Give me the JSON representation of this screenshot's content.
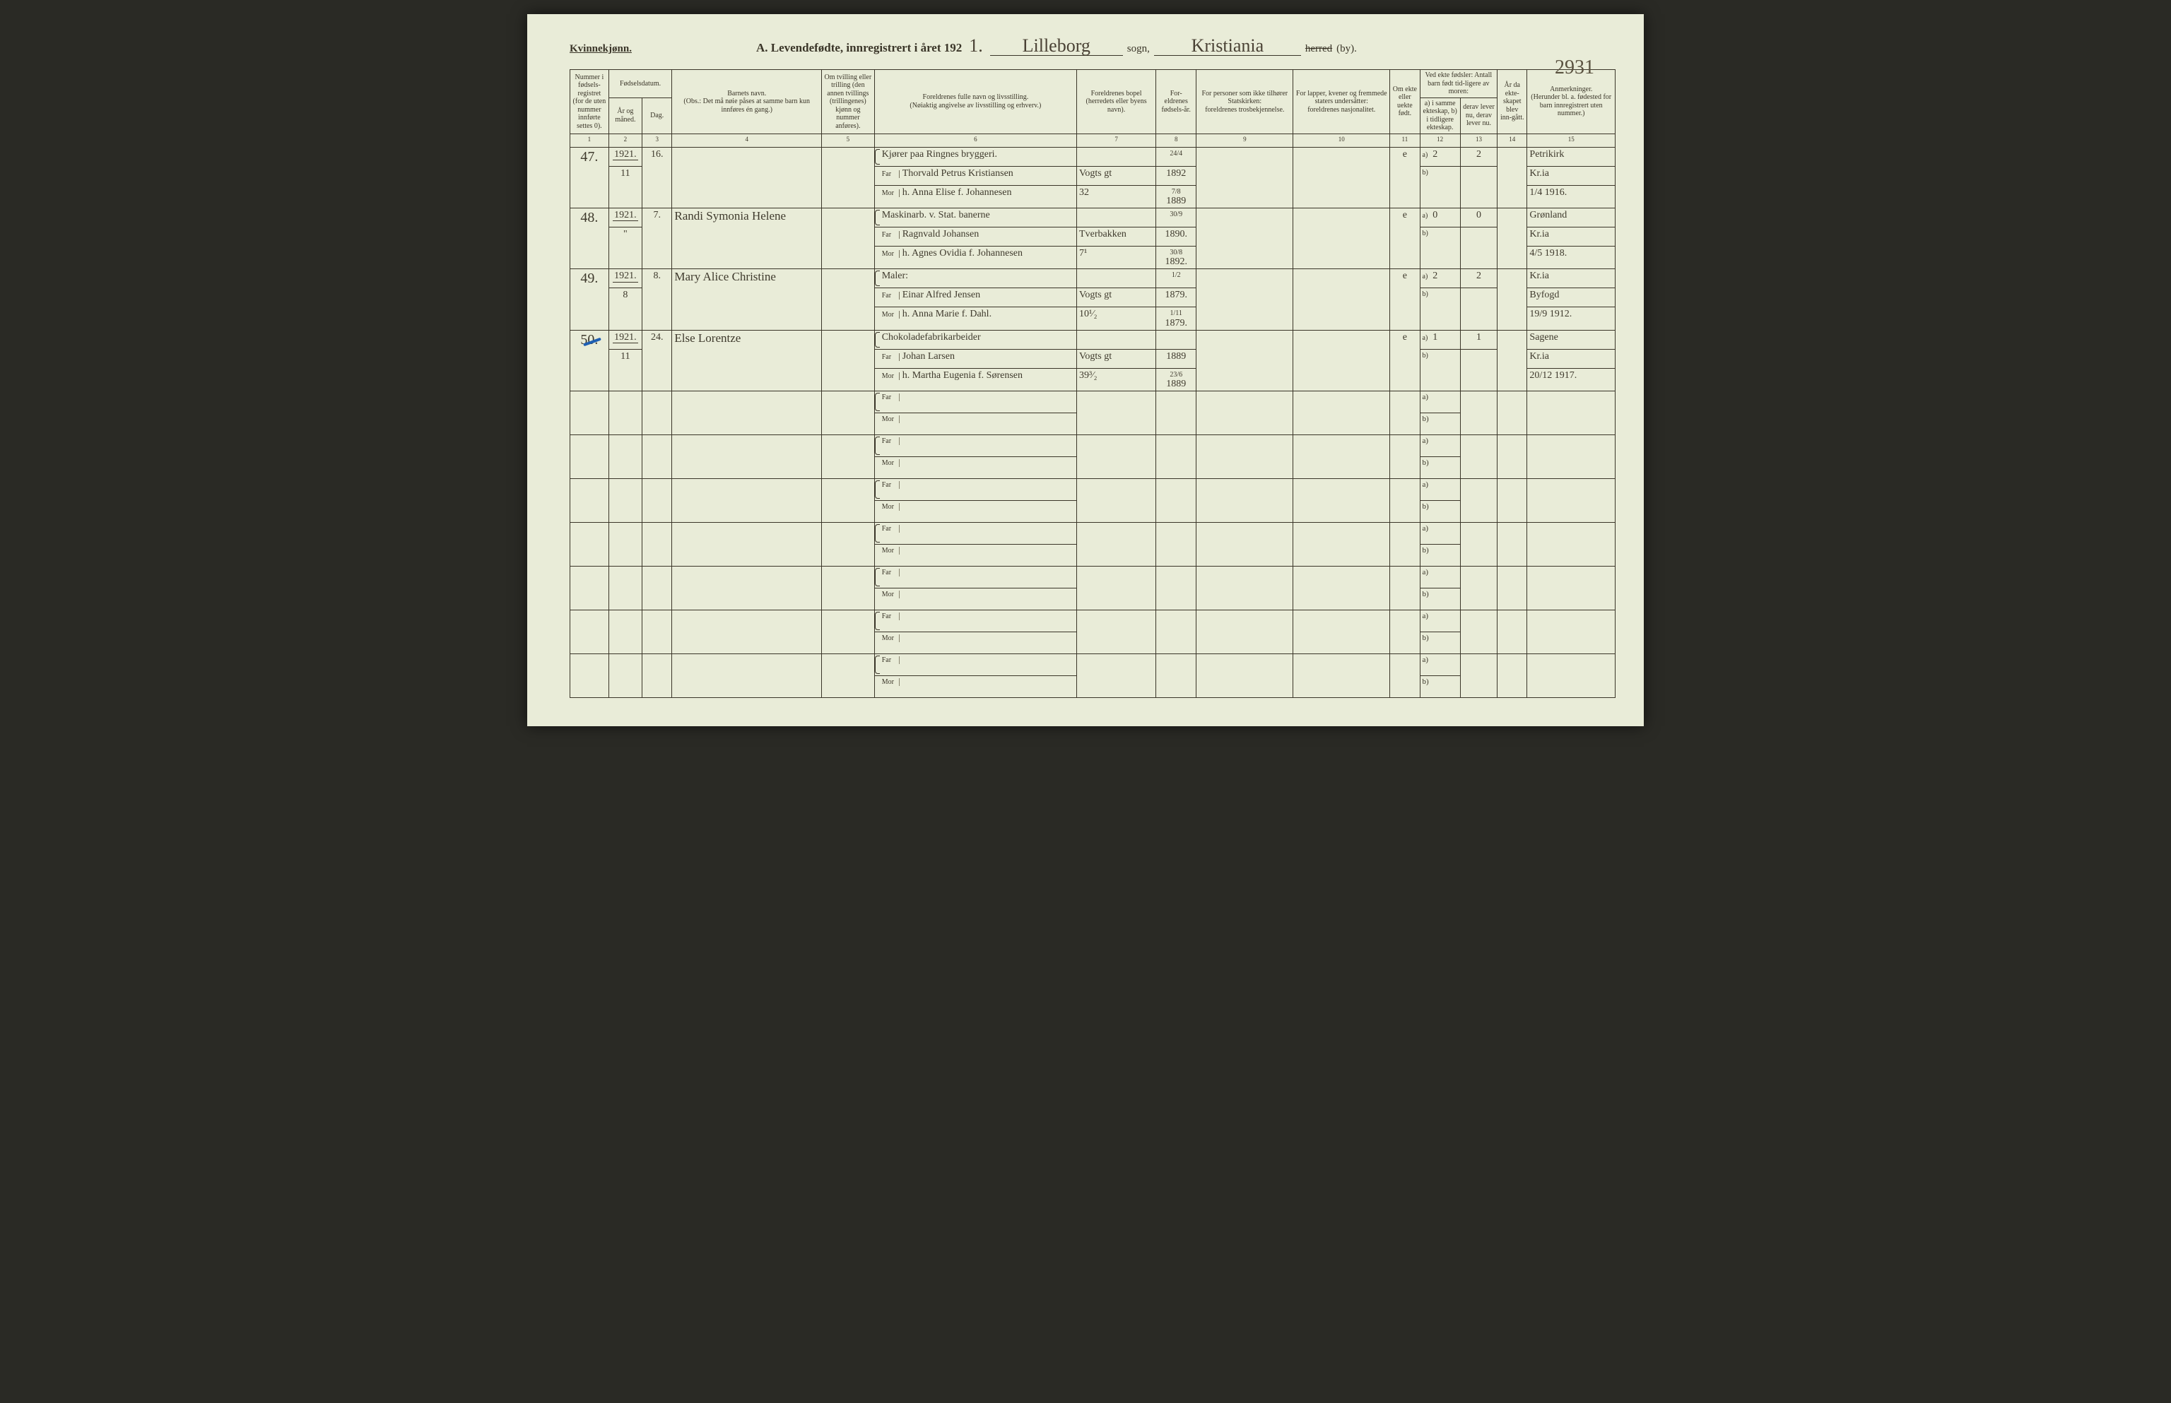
{
  "header": {
    "gender_label": "Kvinnekjønn.",
    "title_prefix": "A.  Levendefødte, innregistrert i året 192",
    "year_last_digit": "1.",
    "parish": "Lilleborg",
    "sogn_label": "sogn,",
    "district": "Kristiania",
    "herred_label": "herred",
    "by_label": "(by).",
    "page_number": "2931"
  },
  "columns": {
    "c1": "Nummer i fødsels-registret (for de uten nummer innførte settes 0).",
    "c2g": "Fødselsdatum.",
    "c2": "År og måned.",
    "c3": "Dag.",
    "c4": "Barnets navn.",
    "c4note": "(Obs.: Det må nøie påses at samme barn kun innføres én gang.)",
    "c5": "Om tvilling eller trilling (den annen tvillings (trillingenes) kjønn og nummer anføres).",
    "c6": "Foreldrenes fulle navn og livsstilling.",
    "c6note": "(Nøiaktig angivelse av livsstilling og erhverv.)",
    "c7": "Foreldrenes bopel",
    "c7note": "(herredets eller byens navn).",
    "c8": "For-eldrenes fødsels-år.",
    "c9": "For personer som ikke tilhører Statskirken:",
    "c9note": "foreldrenes trosbekjennelse.",
    "c10": "For lapper, kvener og fremmede staters undersåtter:",
    "c10note": "foreldrenes nasjonalitet.",
    "c11": "Om ekte eller uekte født.",
    "c12g": "Ved ekte fødsler: Antall barn født tid-ligere av moren:",
    "c12": "a) i samme ekteskap,  b) i tidligere ekteskap.",
    "c13": "derav lever nu, derav lever nu.",
    "c14": "År da ekte-skapet blev inn-gått.",
    "c15": "Anmerkninger.",
    "c15note": "(Herunder bl. a. fødested for barn innregistrert uten nummer.)"
  },
  "colnums": [
    "1",
    "2",
    "3",
    "4",
    "5",
    "6",
    "7",
    "8",
    "9",
    "10",
    "11",
    "12",
    "13",
    "14",
    "15"
  ],
  "prelabels": {
    "far": "Far",
    "mor": "Mor",
    "a": "a)",
    "b": "b)"
  },
  "entries": [
    {
      "num": "47.",
      "year": "1921.",
      "month": "11",
      "day": "16.",
      "child": "",
      "occ": "Kjører paa Ringnes bryggeri.",
      "far": "Thorvald Petrus Kristiansen",
      "mor": "h. Anna Elise f. Johannesen",
      "addr_far": "Vogts gt",
      "addr_mor": "32",
      "year_far_top": "24/4",
      "year_far": "1892",
      "year_mor_top": "7/8",
      "year_mor": "1889",
      "ekte": "e",
      "a12": "2",
      "a13": "2",
      "rem1": "Petrikirk",
      "rem2": "Kr.ia",
      "rem3": "1/4 1916."
    },
    {
      "num": "48.",
      "year": "1921.",
      "month": "\"",
      "day": "7.",
      "child": "Randi Symonia Helene",
      "occ": "Maskinarb. v. Stat. banerne",
      "far": "Ragnvald Johansen",
      "mor": "h. Agnes Ovidia f. Johannesen",
      "addr_far": "Tverbakken",
      "addr_mor": "7¹",
      "year_far_top": "30/9",
      "year_far": "1890.",
      "year_mor_top": "30/8",
      "year_mor": "1892.",
      "ekte": "e",
      "a12": "0",
      "a13": "0",
      "rem1": "Grønland",
      "rem2": "Kr.ia",
      "rem3": "4/5 1918."
    },
    {
      "num": "49.",
      "year": "1921.",
      "month": "8",
      "day": "8.",
      "child": "Mary Alice Christine",
      "occ": "Maler:",
      "far": "Einar Alfred Jensen",
      "mor": "h. Anna Marie f. Dahl.",
      "addr_far": "Vogts gt",
      "addr_mor": "10¹⁄₂",
      "year_far_top": "1/2",
      "year_far": "1879.",
      "year_mor_top": "1/11",
      "year_mor": "1879.",
      "ekte": "e",
      "a12": "2",
      "a13": "2",
      "rem1": "Kr.ia",
      "rem2": "Byfogd",
      "rem3": "19/9 1912."
    },
    {
      "num": "50.",
      "year": "1921.",
      "month": "11",
      "day": "24.",
      "child": "Else Lorentze",
      "occ": "Chokoladefabrikarbeider",
      "far": "Johan Larsen",
      "mor": "h. Martha Eugenia f. Sørensen",
      "addr_far": "Vogts gt",
      "addr_mor": "39³⁄₂",
      "year_far_top": "",
      "year_far": "1889",
      "year_mor_top": "23/6",
      "year_mor": "1889",
      "ekte": "e",
      "a12": "1",
      "a13": "1",
      "rem1": "Sagene",
      "rem2": "Kr.ia",
      "rem3": "20/12 1917."
    }
  ],
  "empty_rows": 7,
  "colors": {
    "page_bg": "#e9ecd8",
    "ink": "#3a3528",
    "hand_ink": "#4a4235",
    "blue_mark": "#1e5fb3"
  }
}
